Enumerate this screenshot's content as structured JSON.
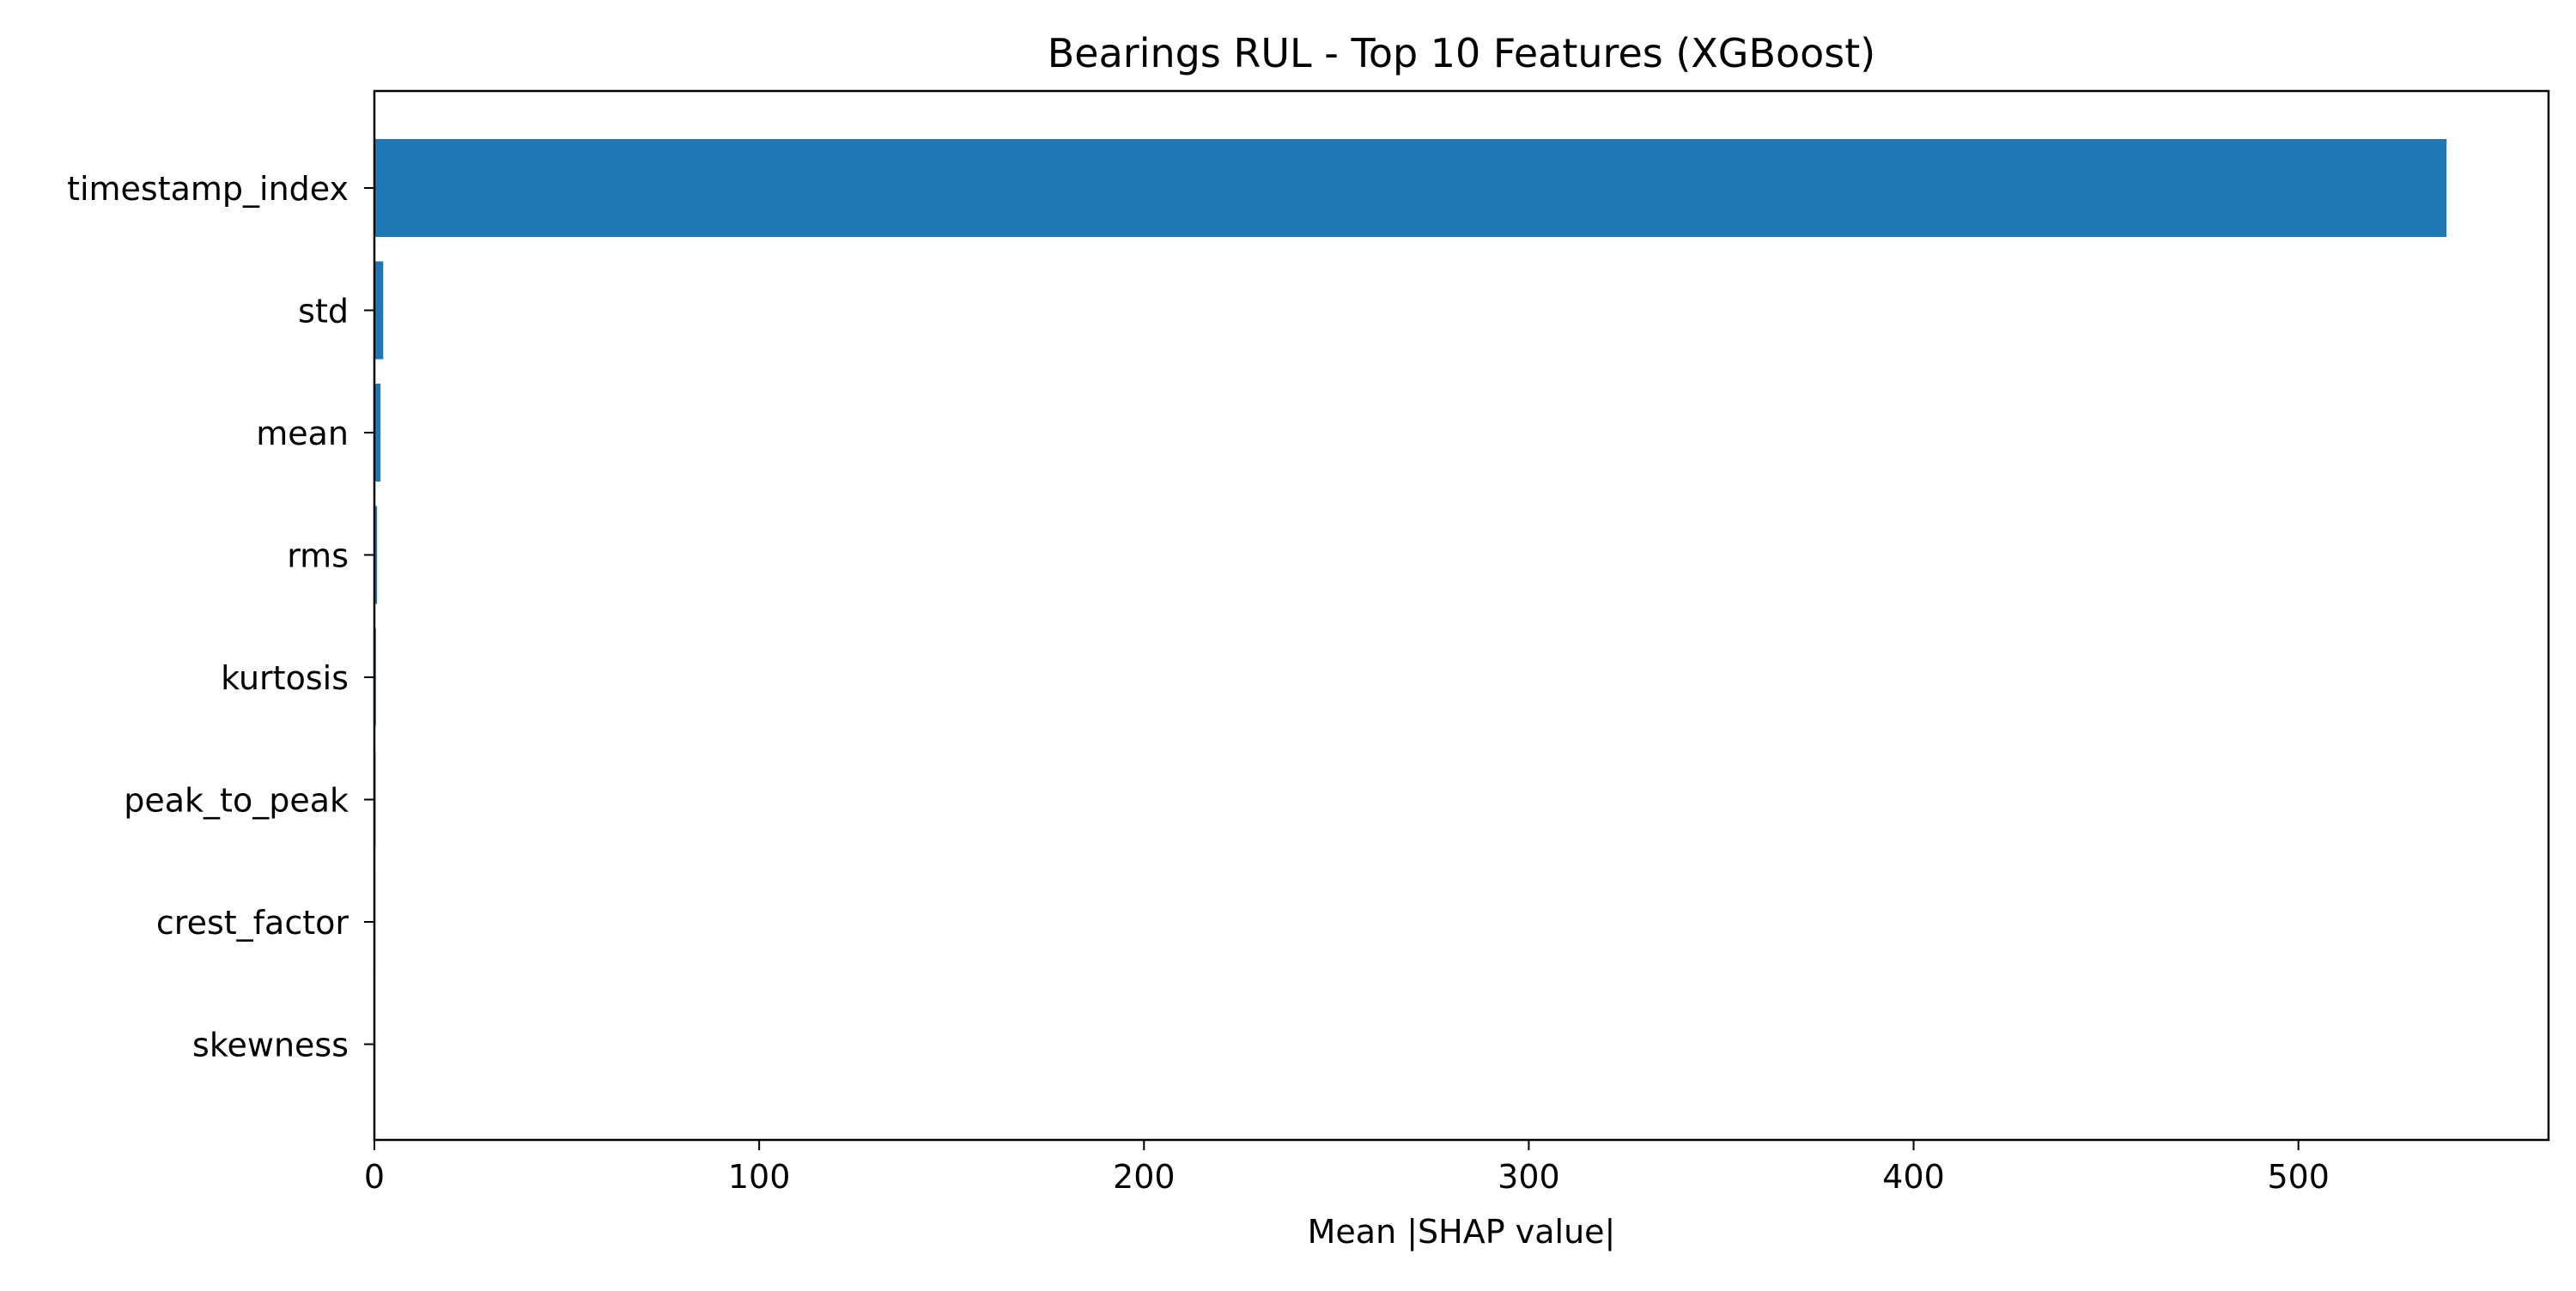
{
  "chart_data": {
    "type": "bar",
    "orientation": "horizontal",
    "title": "Bearings RUL - Top 10 Features (XGBoost)",
    "xlabel": "Mean |SHAP value|",
    "ylabel": "",
    "categories": [
      "timestamp_index",
      "std",
      "mean",
      "rms",
      "kurtosis",
      "peak_to_peak",
      "crest_factor",
      "skewness"
    ],
    "values": [
      538.5,
      2.3,
      1.6,
      0.7,
      0.4,
      0.3,
      0.25,
      0.1
    ],
    "xlim": [
      0,
      565
    ],
    "xticks": [
      0,
      100,
      200,
      300,
      400,
      500
    ],
    "grid": false,
    "legend": "none",
    "bar_color": "#1f77b4"
  }
}
